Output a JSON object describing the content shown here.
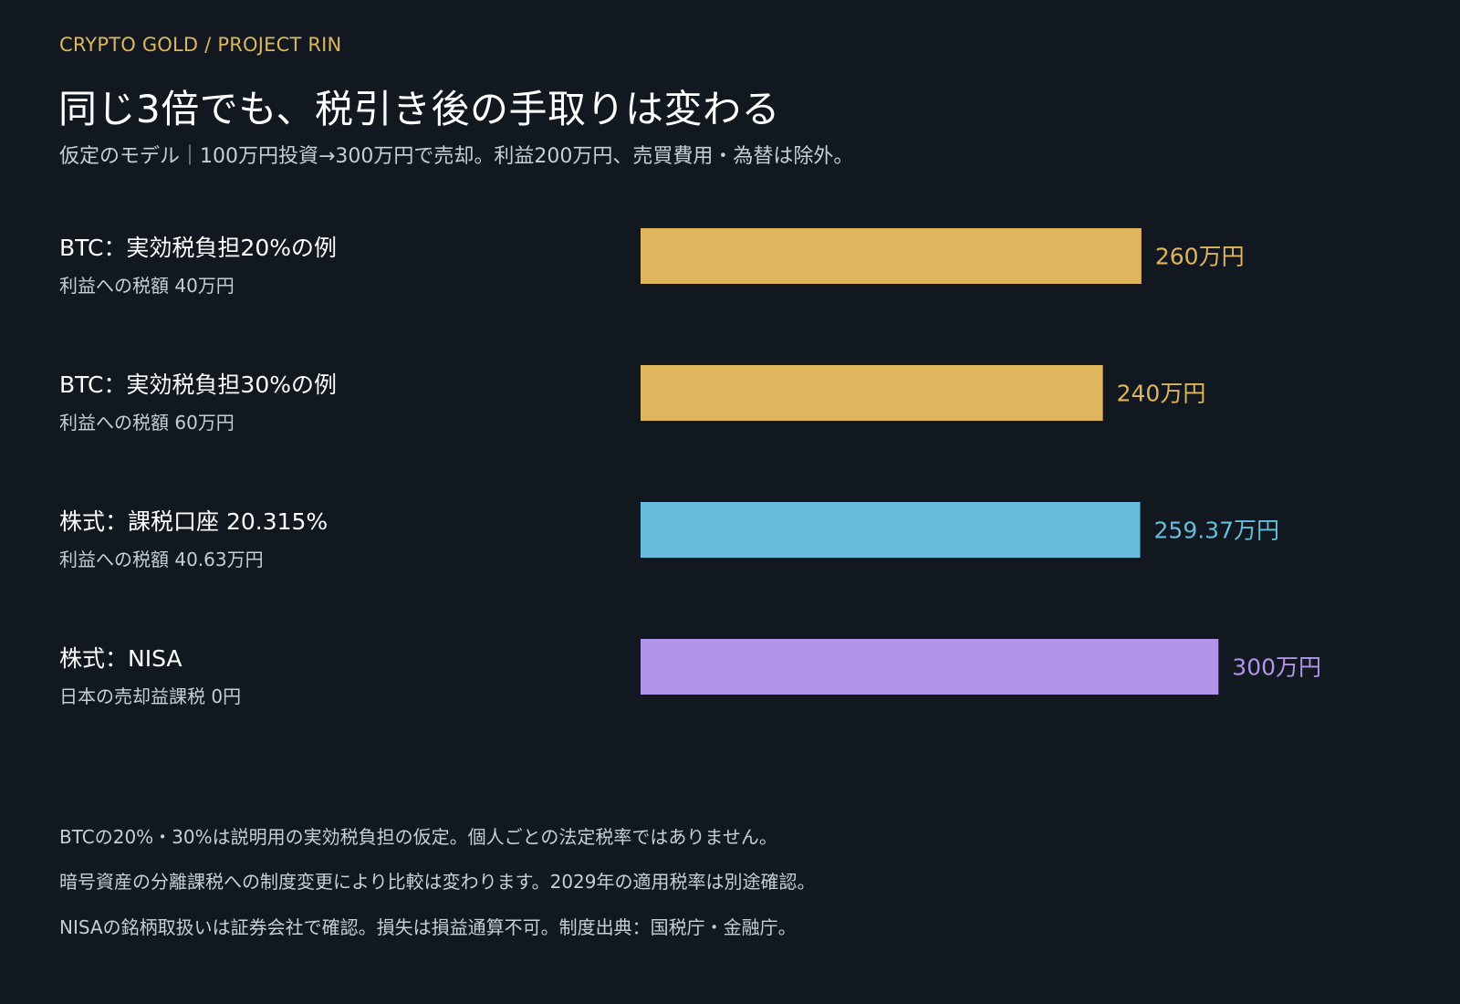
{
  "header": {
    "brand": "CRYPTO GOLD / PROJECT RIN",
    "title": "同じ3倍でも、税引き後の手取りは変わる",
    "subtitle": "仮定のモデル｜100万円投資→300万円で売却。利益200万円、売買費用・為替は除外。"
  },
  "rows": [
    {
      "title": "BTC：実効税負担20%の例",
      "note": "利益への税額 40万円"
    },
    {
      "title": "BTC：実効税負担30%の例",
      "note": "利益への税額 60万円"
    },
    {
      "title": "株式：課税口座 20.315%",
      "note": "利益への税額 40.63万円"
    },
    {
      "title": "株式：NISA",
      "note": "日本の売却益課税 0円"
    }
  ],
  "chart_data": {
    "type": "bar",
    "orientation": "horizontal",
    "categories": [
      "BTC：実効税負担20%の例",
      "BTC：実効税負担30%の例",
      "株式：課税口座 20.315%",
      "株式：NISA"
    ],
    "values": [
      260,
      240,
      259.37,
      300
    ],
    "value_labels": [
      "260万円",
      "240万円",
      "259.37万円",
      "300万円"
    ],
    "colors": [
      "#dfb55d",
      "#dfb55d",
      "#68bcdc",
      "#b195e9"
    ],
    "xlim": [
      0,
      300
    ],
    "grid": false,
    "legend": "none"
  },
  "footnotes": [
    "BTCの20%・30%は説明用の実効税負担の仮定。個人ごとの法定税率ではありません。",
    "暗号資産の分離課税への制度変更により比較は変わります。2029年の適用税率は別途確認。",
    "NISAの銘柄取扱いは証券会社で確認。損失は損益通算不可。制度出典：国税庁・金融庁。"
  ]
}
